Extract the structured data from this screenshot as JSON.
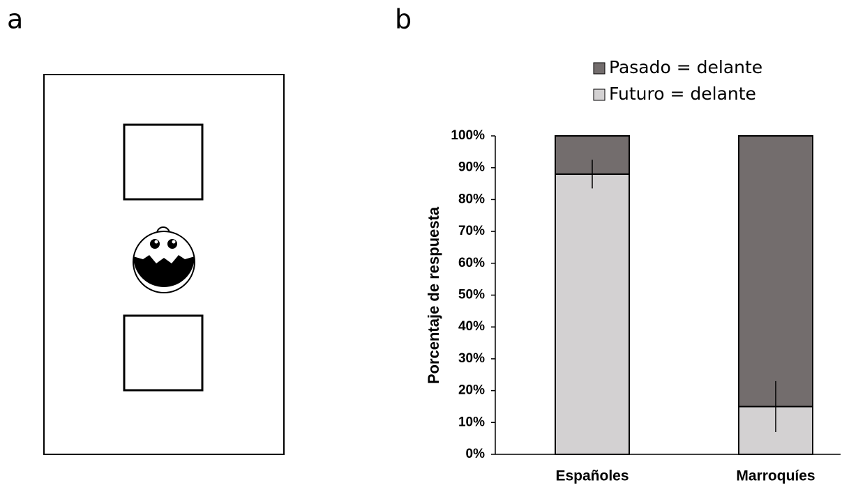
{
  "panel_labels": [
    "a",
    "b"
  ],
  "chart_data": {
    "type": "stacked_bar",
    "y_label": "Porcentaje de respuesta",
    "categories": [
      "Españoles",
      "Marroquíes"
    ],
    "series": [
      {
        "name": "Futuro = delante",
        "color": "#d3d1d2",
        "values": [
          88,
          15
        ],
        "errors": [
          4.5,
          8
        ]
      },
      {
        "name": "Pasado = delante",
        "color": "#736d6d",
        "values": [
          12,
          85
        ]
      }
    ],
    "ylim": [
      0,
      100
    ],
    "yticks": [
      {
        "value": 0,
        "label": "0%"
      },
      {
        "value": 10,
        "label": "10%"
      },
      {
        "value": 20,
        "label": "20%"
      },
      {
        "value": 30,
        "label": "30%"
      },
      {
        "value": 40,
        "label": "40%"
      },
      {
        "value": 50,
        "label": "50%"
      },
      {
        "value": 60,
        "label": "60%"
      },
      {
        "value": 70,
        "label": "70%"
      },
      {
        "value": 80,
        "label": "80%"
      },
      {
        "value": 90,
        "label": "90%"
      },
      {
        "value": 100,
        "label": "100%"
      }
    ],
    "legend": "top"
  }
}
